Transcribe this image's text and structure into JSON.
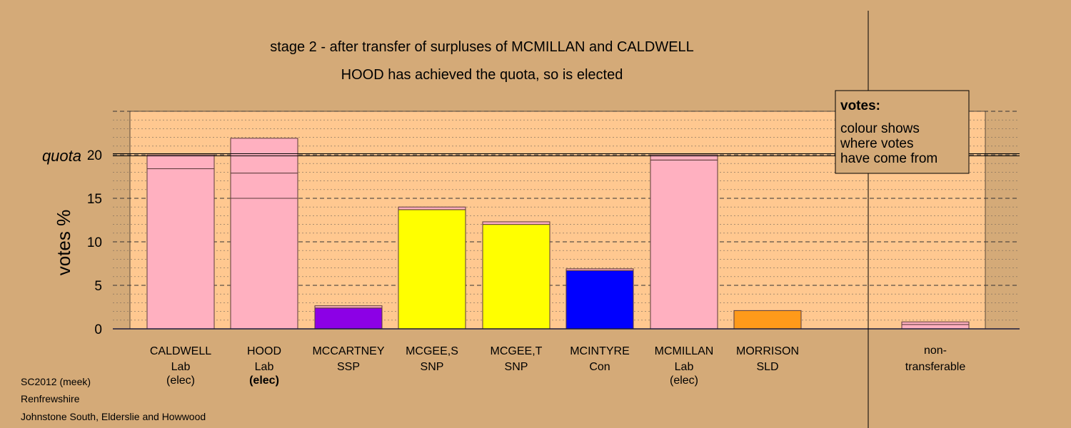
{
  "chart_data": {
    "type": "bar",
    "title": "stage 2 - after transfer of surpluses of MCMILLAN and CALDWELL",
    "subtitle": "HOOD has achieved the quota, so is elected",
    "ylabel": "votes %",
    "ylim": [
      0,
      25
    ],
    "yticks": [
      "0",
      "5",
      "10",
      "15",
      "20"
    ],
    "quota": {
      "label": "quota",
      "value": 20
    },
    "grid": true,
    "legend": {
      "position": "top-right",
      "title": "votes:",
      "lines": [
        "colour shows",
        "where votes",
        "have come from"
      ]
    },
    "categories": [
      {
        "name": "CALDWELL",
        "party": "Lab",
        "status": "(elec)",
        "status_bold": false,
        "segments": [
          {
            "value": 18.4,
            "color": "#ffb0c0"
          },
          {
            "value": 1.6,
            "color": "#ffb0c0"
          }
        ]
      },
      {
        "name": "HOOD",
        "party": "Lab",
        "status": "(elec)",
        "status_bold": true,
        "segments": [
          {
            "value": 15.0,
            "color": "#ffb0c0"
          },
          {
            "value": 2.9,
            "color": "#ffb0c0"
          },
          {
            "value": 4.0,
            "color": "#ffb0c0"
          }
        ]
      },
      {
        "name": "MCCARTNEY",
        "party": "SSP",
        "status": "",
        "status_bold": false,
        "segments": [
          {
            "value": 2.4,
            "color": "#8c00e6"
          },
          {
            "value": 0.25,
            "color": "#ffb0c0"
          }
        ]
      },
      {
        "name": "MCGEE,S",
        "party": "SNP",
        "status": "",
        "status_bold": false,
        "segments": [
          {
            "value": 13.7,
            "color": "#ffff00"
          },
          {
            "value": 0.3,
            "color": "#ffb0c0"
          }
        ]
      },
      {
        "name": "MCGEE,T",
        "party": "SNP",
        "status": "",
        "status_bold": false,
        "segments": [
          {
            "value": 12.0,
            "color": "#ffff00"
          },
          {
            "value": 0.3,
            "color": "#ffb0c0"
          }
        ]
      },
      {
        "name": "MCINTYRE",
        "party": "Con",
        "status": "",
        "status_bold": false,
        "segments": [
          {
            "value": 6.7,
            "color": "#0000ff"
          },
          {
            "value": 0.2,
            "color": "#ffb0c0"
          }
        ]
      },
      {
        "name": "MCMILLAN",
        "party": "Lab",
        "status": "(elec)",
        "status_bold": false,
        "segments": [
          {
            "value": 19.4,
            "color": "#ffb0c0"
          },
          {
            "value": 0.6,
            "color": "#ffb0c0"
          }
        ]
      },
      {
        "name": "MORRISON",
        "party": "SLD",
        "status": "",
        "status_bold": false,
        "segments": [
          {
            "value": 2.1,
            "color": "#ff9a1a"
          }
        ]
      },
      {
        "name": "",
        "party": "",
        "status": "",
        "status_bold": false,
        "segments": []
      }
    ],
    "nontransferable": {
      "line1": "non-",
      "line2": "transferable",
      "segments": [
        {
          "value": 0.5,
          "color": "#ffb0c0"
        },
        {
          "value": 0.3,
          "color": "#ffb0c0"
        }
      ]
    },
    "colors": {
      "background": "#d4aa78",
      "plot": "#ffc890",
      "legend_bg": "#d4aa78"
    }
  },
  "footer": {
    "line1": "SC2012 (meek)",
    "line2": "Renfrewshire",
    "line3": "Johnstone South, Elderslie and Howwood"
  }
}
